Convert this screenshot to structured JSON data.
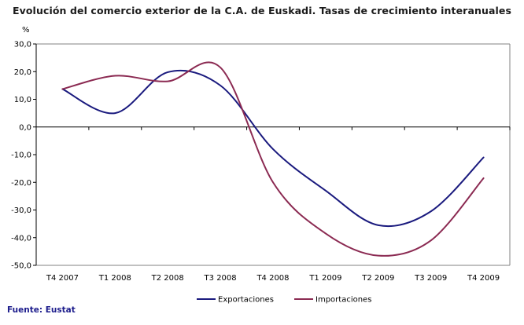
{
  "chart_data": {
    "type": "line",
    "title": "Evolución del comercio exterior de la C.A. de Euskadi. Tasas de crecimiento interanuales",
    "ylabel": "%",
    "xlabel": "",
    "categories": [
      "T4 2007",
      "T1 2008",
      "T2 2008",
      "T3 2008",
      "T4 2008",
      "T1 2009",
      "T2 2009",
      "T3 2009",
      "T4 2009"
    ],
    "y_ticks": [
      "30,0",
      "20,0",
      "10,0",
      "0,0",
      "-10,0",
      "-20,0",
      "-30,0",
      "-40,0",
      "-50,0"
    ],
    "ylim": [
      -50,
      30
    ],
    "series": [
      {
        "name": "Exportaciones",
        "color": "#1a1a7e",
        "values": [
          13.7,
          5.0,
          19.8,
          15.0,
          -8.0,
          -23.0,
          -35.5,
          -30.5,
          -11.0
        ]
      },
      {
        "name": "Importaciones",
        "color": "#8b2a52",
        "values": [
          13.7,
          18.5,
          16.5,
          21.5,
          -20.0,
          -38.5,
          -46.5,
          -41.0,
          -18.5
        ]
      }
    ],
    "grid": false,
    "legend_position": "bottom"
  },
  "source": "Fuente: Eustat"
}
